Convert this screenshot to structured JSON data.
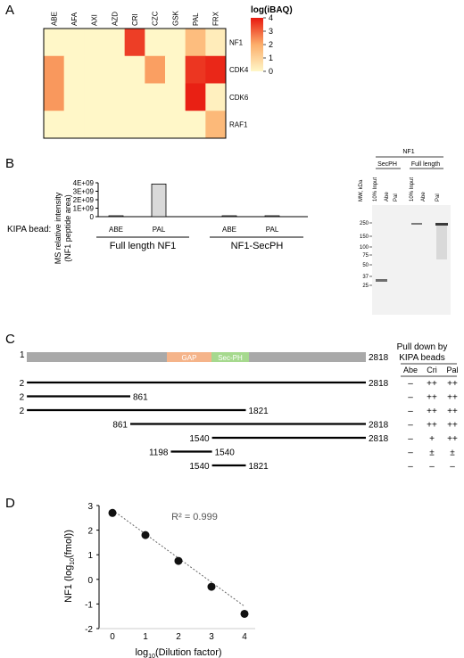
{
  "panels": [
    "A",
    "B",
    "C",
    "D"
  ],
  "panelA": {
    "columns": [
      "ABE",
      "AFA",
      "AXI",
      "AZD",
      "CRI",
      "CZC",
      "GSK",
      "PAL",
      "FRX"
    ],
    "rows": [
      "NF1",
      "CDK4",
      "CDK6",
      "RAF1"
    ],
    "values": [
      [
        0,
        0,
        0,
        0,
        3.5,
        0,
        0,
        1.6,
        0.3
      ],
      [
        2.3,
        0,
        0,
        0,
        0,
        2.2,
        0,
        3.6,
        3.8
      ],
      [
        2.3,
        0,
        0,
        0,
        0,
        0,
        0,
        3.9,
        0.2
      ],
      [
        0,
        0,
        0,
        0,
        0,
        0,
        0,
        0,
        1.7
      ]
    ],
    "legend_title": "log(iBAQ)",
    "legend_ticks": [
      "4",
      "3",
      "2",
      "1",
      "0"
    ],
    "colors": {
      "low": "#fff7c8",
      "mid": "#fcae6b",
      "high": "#e8180f"
    }
  },
  "panelB": {
    "y_ticks": [
      "4E+09",
      "3E+09",
      "2E+09",
      "1E+09",
      "0"
    ],
    "ylabel_line1": "MS relative intensity",
    "ylabel_line2": "(NF1 peptide area)",
    "bead_label": "KIPA bead:",
    "bar_labels": [
      "ABE",
      "PAL",
      "ABE",
      "PAL"
    ],
    "group_labels": [
      "Full length NF1",
      "NF1-SecPH"
    ],
    "gel": {
      "top_label": "NF1",
      "sub_labels": [
        "SecPH",
        "Full length"
      ],
      "lane_labels": [
        "MW, kDa",
        "10% Input",
        "Abe",
        "Pal",
        "10% Input",
        "Abe",
        "Pal"
      ],
      "mw_markers": [
        "250",
        "150",
        "100",
        "75",
        "50",
        "37",
        "25"
      ]
    }
  },
  "chart_data": [
    {
      "type": "heatmap",
      "title": "",
      "x": [
        "ABE",
        "AFA",
        "AXI",
        "AZD",
        "CRI",
        "CZC",
        "GSK",
        "PAL",
        "FRX"
      ],
      "y": [
        "NF1",
        "CDK4",
        "CDK6",
        "RAF1"
      ],
      "values": [
        [
          0,
          0,
          0,
          0,
          3.5,
          0,
          0,
          1.6,
          0.3
        ],
        [
          2.3,
          0,
          0,
          0,
          0,
          2.2,
          0,
          3.6,
          3.8
        ],
        [
          2.3,
          0,
          0,
          0,
          0,
          0,
          0,
          3.9,
          0.2
        ],
        [
          0,
          0,
          0,
          0,
          0,
          0,
          0,
          0,
          1.7
        ]
      ],
      "colorbar_label": "log(iBAQ)",
      "zlim": [
        0,
        4
      ]
    },
    {
      "type": "bar",
      "categories": [
        "ABE",
        "PAL",
        "ABE",
        "PAL"
      ],
      "groups": [
        "Full length NF1",
        "NF1-SecPH"
      ],
      "values": [
        0,
        3850000000,
        40000000,
        80000000
      ],
      "ylabel": "MS relative intensity (NF1 peptide area)",
      "ylim": [
        0,
        4000000000
      ]
    },
    {
      "type": "scatter",
      "x": [
        0,
        1,
        2,
        3,
        4
      ],
      "y": [
        2.7,
        1.8,
        0.75,
        -0.3,
        -1.4
      ],
      "xlabel": "log10(Dilution factor)",
      "ylabel": "NF1 (log10(fmol))",
      "xlim": [
        -0.5,
        4.5
      ],
      "ylim": [
        -2,
        3
      ],
      "annotation": "R² = 0.999",
      "trendline": "dotted linear"
    }
  ],
  "panelC": {
    "header_line1": "Pull down by",
    "header_line2": "KIPA beads",
    "col_headers": [
      "Abe",
      "Cri",
      "Pal"
    ],
    "domain_gap": "GAP",
    "domain_secph": "Sec-PH",
    "full_start": "1",
    "full_end": "2818",
    "constructs": [
      {
        "start": "2",
        "end": "2818",
        "abe": "–",
        "cri": "++",
        "pal": "++",
        "s": 2,
        "e": 2818
      },
      {
        "start": "2",
        "end": "861",
        "abe": "–",
        "cri": "++",
        "pal": "++",
        "s": 2,
        "e": 861
      },
      {
        "start": "2",
        "end": "1821",
        "abe": "–",
        "cri": "++",
        "pal": "++",
        "s": 2,
        "e": 1821
      },
      {
        "start": "861",
        "end": "2818",
        "abe": "–",
        "cri": "++",
        "pal": "++",
        "s": 861,
        "e": 2818
      },
      {
        "start": "1540",
        "end": "2818",
        "abe": "–",
        "cri": "+",
        "pal": "++",
        "s": 1540,
        "e": 2818
      },
      {
        "start": "1198",
        "end": "1540",
        "abe": "–",
        "cri": "±",
        "pal": "±",
        "s": 1198,
        "e": 1540
      },
      {
        "start": "1540",
        "end": "1821",
        "abe": "–",
        "cri": "–",
        "pal": "–",
        "s": 1540,
        "e": 1821
      }
    ],
    "colors": {
      "bar": "#a9a9a9",
      "gap": "#f5b48a",
      "secph": "#a6d98e"
    }
  },
  "panelD": {
    "y_ticks": [
      "3",
      "2",
      "1",
      "0",
      "-1",
      "-2"
    ],
    "x_ticks": [
      "0",
      "1",
      "2",
      "3",
      "4"
    ],
    "ylabel": "NF1 (log",
    "ylabel_sub": "10",
    "ylabel_mid": "(fmol))",
    "xlabel": "log",
    "xlabel_sub": "10",
    "xlabel_end": "(Dilution factor)",
    "r2": "R² = 0.999"
  }
}
